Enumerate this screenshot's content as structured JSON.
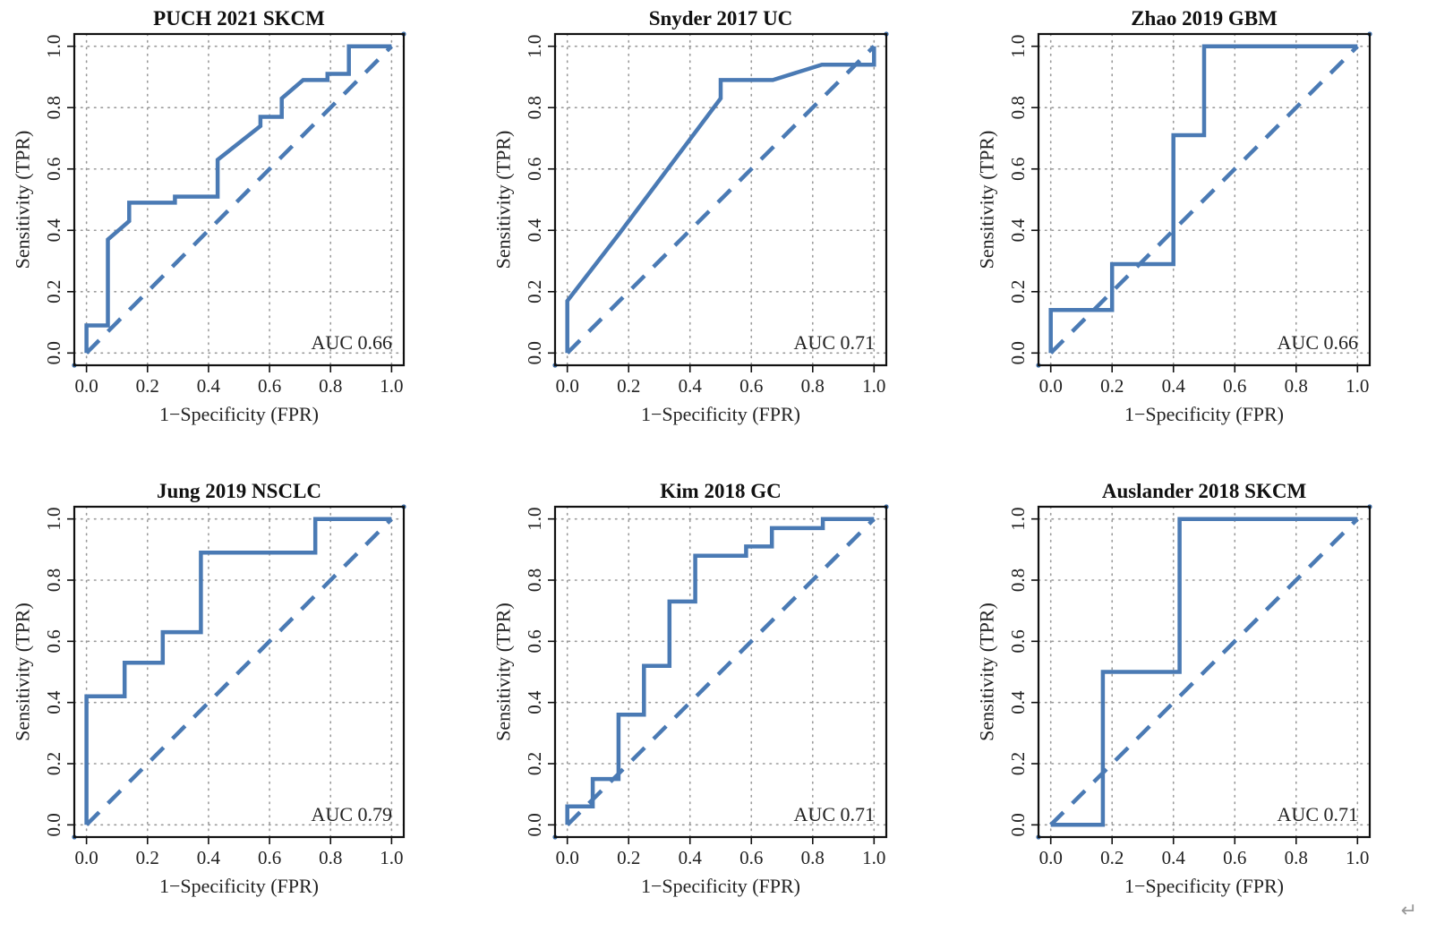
{
  "chart_data": [
    {
      "type": "line",
      "title": "PUCH 2021 SKCM",
      "xlabel": "1−Specificity (FPR)",
      "ylabel": "Sensitivity (TPR)",
      "xlim": [
        0,
        1
      ],
      "ylim": [
        0,
        1
      ],
      "xticks": [
        "0.0",
        "0.2",
        "0.4",
        "0.6",
        "0.8",
        "1.0"
      ],
      "yticks": [
        "0.0",
        "0.2",
        "0.4",
        "0.6",
        "0.8",
        "1.0"
      ],
      "grid": true,
      "annotation": "AUC 0.66",
      "series": [
        {
          "x": [
            0,
            0,
            0.07,
            0.07,
            0.14,
            0.14,
            0.29,
            0.29,
            0.43,
            0.43,
            0.57,
            0.57,
            0.64,
            0.64,
            0.71,
            0.79,
            0.79,
            0.86,
            0.86,
            1.0
          ],
          "y": [
            0,
            0.09,
            0.09,
            0.37,
            0.43,
            0.49,
            0.49,
            0.51,
            0.51,
            0.63,
            0.74,
            0.77,
            0.77,
            0.83,
            0.89,
            0.89,
            0.91,
            0.91,
            1.0,
            1.0
          ]
        }
      ],
      "reference_line": {
        "x": [
          0,
          1
        ],
        "y": [
          0,
          1
        ]
      }
    },
    {
      "type": "line",
      "title": "Snyder 2017 UC",
      "xlabel": "1−Specificity (FPR)",
      "ylabel": "Sensitivity (TPR)",
      "xlim": [
        0,
        1
      ],
      "ylim": [
        0,
        1
      ],
      "xticks": [
        "0.0",
        "0.2",
        "0.4",
        "0.6",
        "0.8",
        "1.0"
      ],
      "yticks": [
        "0.0",
        "0.2",
        "0.4",
        "0.6",
        "0.8",
        "1.0"
      ],
      "grid": true,
      "annotation": "AUC 0.71",
      "series": [
        {
          "x": [
            0,
            0,
            0.17,
            0.5,
            0.5,
            0.67,
            0.83,
            1.0,
            1.0
          ],
          "y": [
            0,
            0.17,
            0.39,
            0.83,
            0.89,
            0.89,
            0.94,
            0.94,
            1.0
          ]
        }
      ],
      "reference_line": {
        "x": [
          0,
          1
        ],
        "y": [
          0,
          1
        ]
      }
    },
    {
      "type": "line",
      "title": "Zhao 2019 GBM",
      "xlabel": "1−Specificity (FPR)",
      "ylabel": "Sensitivity (TPR)",
      "xlim": [
        0,
        1
      ],
      "ylim": [
        0,
        1
      ],
      "xticks": [
        "0.0",
        "0.2",
        "0.4",
        "0.6",
        "0.8",
        "1.0"
      ],
      "yticks": [
        "0.0",
        "0.2",
        "0.4",
        "0.6",
        "0.8",
        "1.0"
      ],
      "grid": true,
      "annotation": "AUC 0.66",
      "series": [
        {
          "x": [
            0,
            0,
            0.2,
            0.2,
            0.4,
            0.4,
            0.5,
            0.5,
            1.0
          ],
          "y": [
            0,
            0.14,
            0.14,
            0.29,
            0.29,
            0.71,
            0.71,
            1.0,
            1.0
          ]
        }
      ],
      "reference_line": {
        "x": [
          0,
          1
        ],
        "y": [
          0,
          1
        ]
      }
    },
    {
      "type": "line",
      "title": "Jung 2019 NSCLC",
      "xlabel": "1−Specificity (FPR)",
      "ylabel": "Sensitivity (TPR)",
      "xlim": [
        0,
        1
      ],
      "ylim": [
        0,
        1
      ],
      "xticks": [
        "0.0",
        "0.2",
        "0.4",
        "0.6",
        "0.8",
        "1.0"
      ],
      "yticks": [
        "0.0",
        "0.2",
        "0.4",
        "0.6",
        "0.8",
        "1.0"
      ],
      "grid": true,
      "annotation": "AUC 0.79",
      "series": [
        {
          "x": [
            0,
            0,
            0.125,
            0.125,
            0.25,
            0.25,
            0.375,
            0.375,
            0.75,
            0.75,
            1.0
          ],
          "y": [
            0,
            0.42,
            0.42,
            0.53,
            0.53,
            0.63,
            0.63,
            0.89,
            0.89,
            1.0,
            1.0
          ]
        }
      ],
      "reference_line": {
        "x": [
          0,
          1
        ],
        "y": [
          0,
          1
        ]
      }
    },
    {
      "type": "line",
      "title": "Kim 2018 GC",
      "xlabel": "1−Specificity (FPR)",
      "ylabel": "Sensitivity (TPR)",
      "xlim": [
        0,
        1
      ],
      "ylim": [
        0,
        1
      ],
      "xticks": [
        "0.0",
        "0.2",
        "0.4",
        "0.6",
        "0.8",
        "1.0"
      ],
      "yticks": [
        "0.0",
        "0.2",
        "0.4",
        "0.6",
        "0.8",
        "1.0"
      ],
      "grid": true,
      "annotation": "AUC 0.71",
      "series": [
        {
          "x": [
            0,
            0,
            0.083,
            0.083,
            0.167,
            0.167,
            0.25,
            0.25,
            0.333,
            0.333,
            0.417,
            0.417,
            0.583,
            0.583,
            0.667,
            0.667,
            0.833,
            0.833,
            1.0
          ],
          "y": [
            0,
            0.06,
            0.06,
            0.15,
            0.15,
            0.36,
            0.36,
            0.52,
            0.52,
            0.73,
            0.73,
            0.88,
            0.88,
            0.91,
            0.91,
            0.97,
            0.97,
            1.0,
            1.0
          ]
        }
      ],
      "reference_line": {
        "x": [
          0,
          1
        ],
        "y": [
          0,
          1
        ]
      }
    },
    {
      "type": "line",
      "title": "Auslander 2018 SKCM",
      "xlabel": "1−Specificity (FPR)",
      "ylabel": "Sensitivity (TPR)",
      "xlim": [
        0,
        1
      ],
      "ylim": [
        0,
        1
      ],
      "xticks": [
        "0.0",
        "0.2",
        "0.4",
        "0.6",
        "0.8",
        "1.0"
      ],
      "yticks": [
        "0.0",
        "0.2",
        "0.4",
        "0.6",
        "0.8",
        "1.0"
      ],
      "grid": true,
      "annotation": "AUC 0.71",
      "series": [
        {
          "x": [
            0,
            0.17,
            0.17,
            0.42,
            0.42,
            1.0
          ],
          "y": [
            0,
            0,
            0.5,
            0.5,
            1.0,
            1.0
          ]
        }
      ],
      "reference_line": {
        "x": [
          0,
          1
        ],
        "y": [
          0,
          1
        ]
      }
    }
  ],
  "colors": {
    "roc": "#4a7ab4",
    "frame": "#111111",
    "grid": "#9a9a9a"
  },
  "trailing_mark": "↵"
}
